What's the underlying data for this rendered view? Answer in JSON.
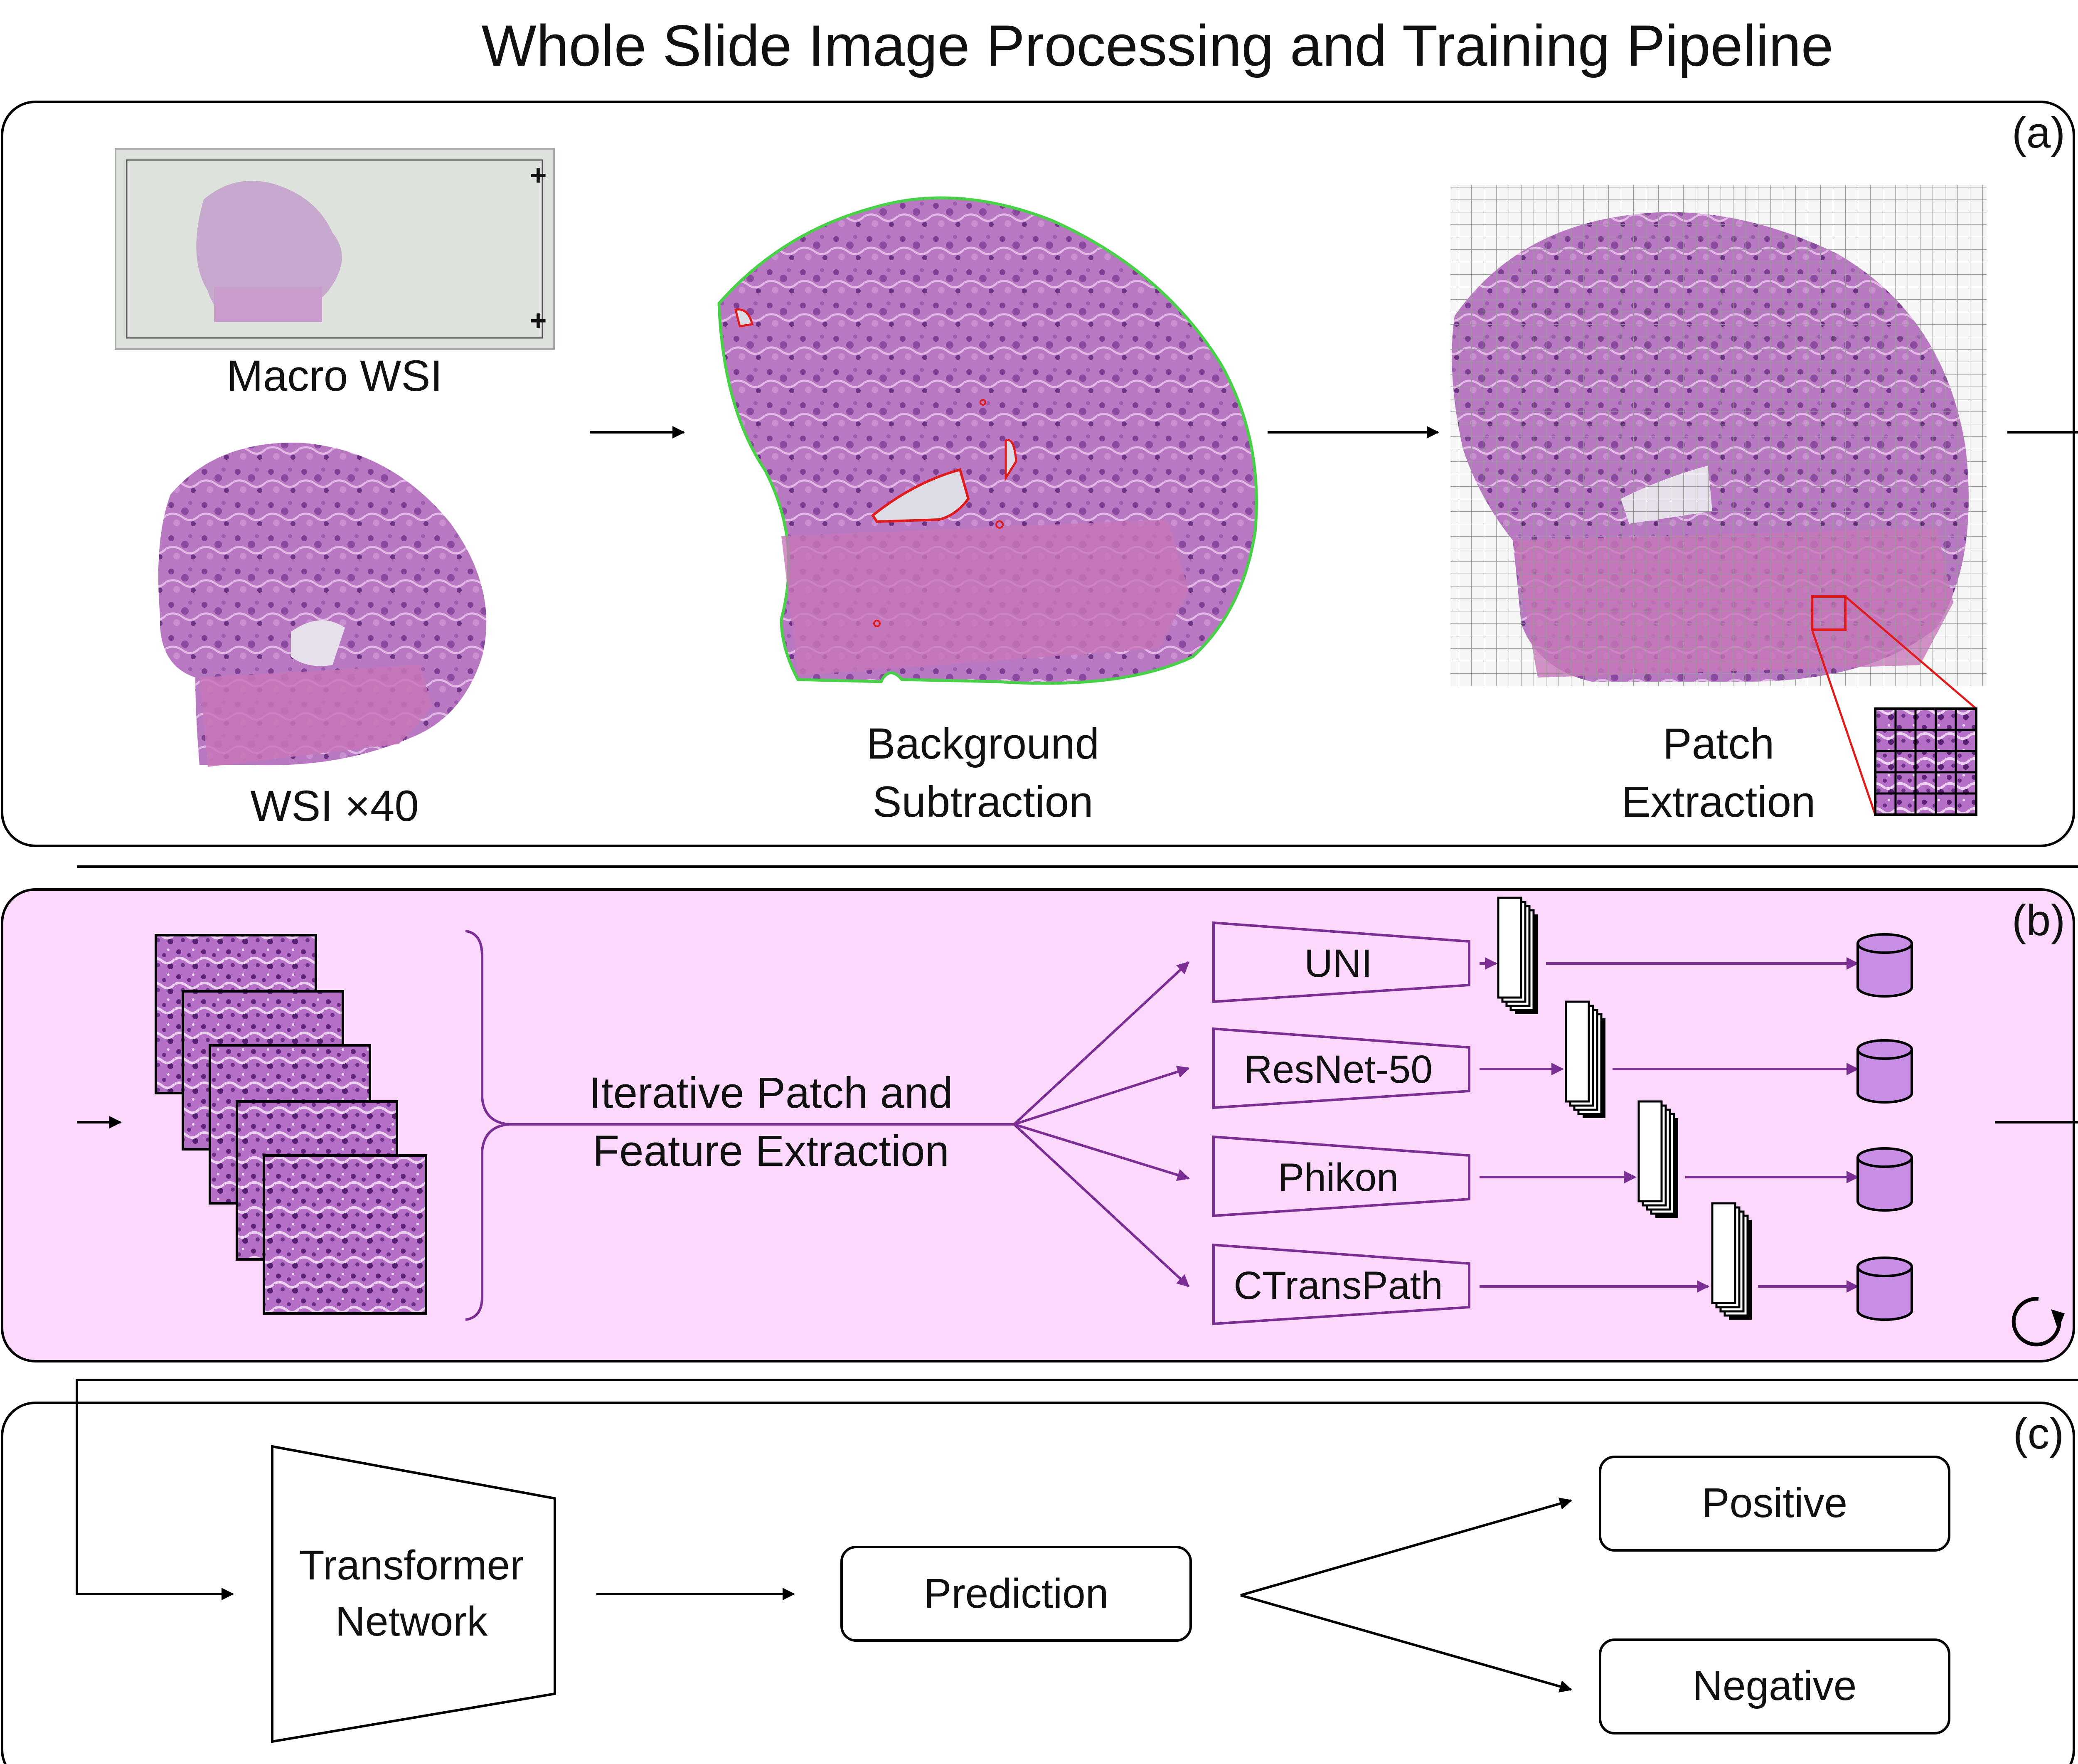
{
  "title": "Whole Slide Image Processing and Training Pipeline",
  "panel_a": {
    "label": "(a)",
    "macro_label": "Macro WSI",
    "wsi_label": "WSI ×40",
    "bg_sub_line1": "Background",
    "bg_sub_line2": "Subtraction",
    "patch_line1": "Patch",
    "patch_line2": "Extraction"
  },
  "panel_b": {
    "label": "(b)",
    "iter_line1": "Iterative Patch and",
    "iter_line2": "Feature Extraction",
    "models": [
      "UNI",
      "ResNet-50",
      "Phikon",
      "CTransPath"
    ]
  },
  "panel_c": {
    "label": "(c)",
    "transformer_line1": "Transformer",
    "transformer_line2": "Network",
    "prediction": "Prediction",
    "positive": "Positive",
    "negative": "Negative"
  },
  "colors": {
    "tissue": "#b979c2",
    "tissue_dark": "#8c4f9e",
    "panel_b_bg": "#fcd9fc",
    "purple_line": "#7b2f94",
    "db_fill": "#c88ee6",
    "green_outline": "#47d147",
    "red_outline": "#e01b1b"
  }
}
